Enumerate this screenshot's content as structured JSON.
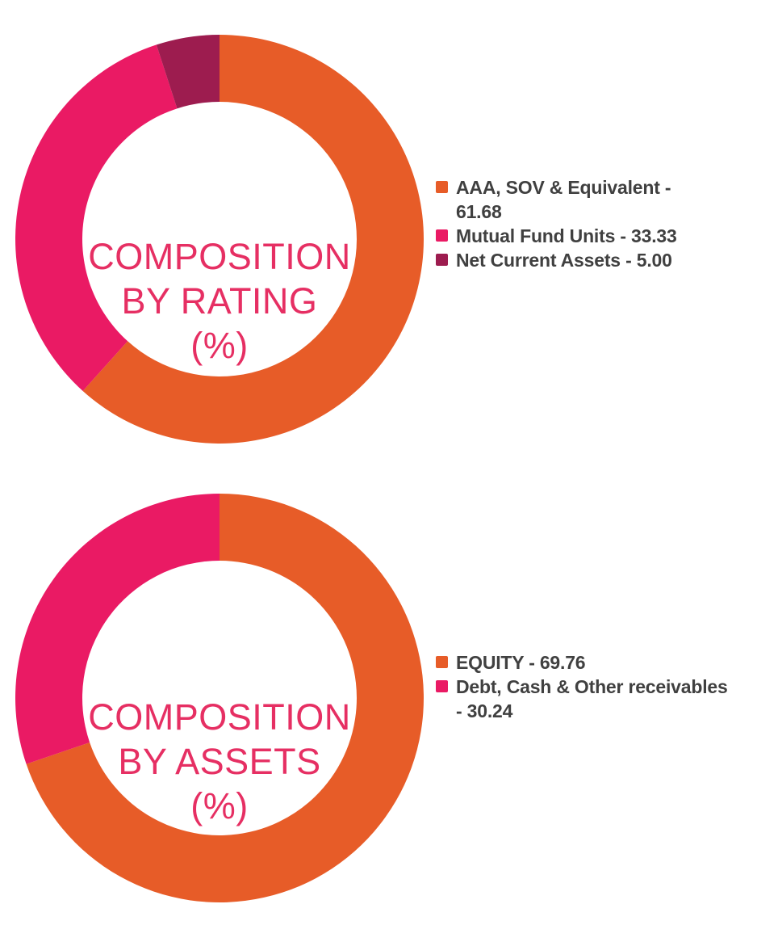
{
  "page": {
    "background": "#ffffff",
    "legend_text_color": "#404040",
    "center_title_color": "#E62F63"
  },
  "chart_data": [
    {
      "type": "pie",
      "subtype": "donut",
      "title": "COMPOSITION BY RATING (%)",
      "title_lines": [
        "COMPOSITION",
        "BY RATING",
        "(%)"
      ],
      "legend_position": "right",
      "start_angle_deg": 0,
      "direction": "clockwise",
      "inner_radius_ratio": 0.67,
      "total": 100.01,
      "slices": [
        {
          "label": "AAA, SOV & Equivalent",
          "value": 61.68,
          "color": "#E75C28",
          "legend_text": "AAA, SOV & Equivalent -\n61.68"
        },
        {
          "label": "Mutual Fund Units",
          "value": 33.33,
          "color": "#EA1A64",
          "legend_text": "Mutual Fund Units - 33.33"
        },
        {
          "label": "Net Current Assets",
          "value": 5.0,
          "color": "#9D1C4F",
          "legend_text": "Net Current Assets - 5.00"
        }
      ]
    },
    {
      "type": "pie",
      "subtype": "donut",
      "title": "COMPOSITION BY ASSETS (%)",
      "title_lines": [
        "COMPOSITION",
        "BY ASSETS",
        "(%)"
      ],
      "legend_position": "right",
      "start_angle_deg": 0,
      "direction": "clockwise",
      "inner_radius_ratio": 0.67,
      "total": 100.0,
      "slices": [
        {
          "label": "EQUITY",
          "value": 69.76,
          "color": "#E75C28",
          "legend_text": "EQUITY - 69.76"
        },
        {
          "label": "Debt, Cash & Other receivables",
          "value": 30.24,
          "color": "#EA1A64",
          "legend_text": "Debt, Cash & Other receivables\n- 30.24"
        }
      ]
    }
  ]
}
